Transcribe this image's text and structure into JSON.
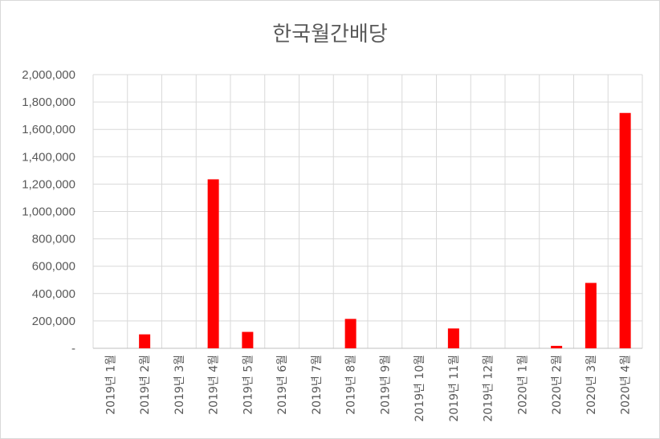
{
  "chart_data": {
    "type": "bar",
    "title": "한국월간배당",
    "categories": [
      "2019년 1월",
      "2019년 2월",
      "2019년 3월",
      "2019년 4월",
      "2019년 5월",
      "2019년 6월",
      "2019년 7월",
      "2019년 8월",
      "2019년 9월",
      "2019년 10월",
      "2019년 11월",
      "2019년 12월",
      "2020년 1월",
      "2020년 2월",
      "2020년 3월",
      "2020년 4월"
    ],
    "values": [
      0,
      102000,
      0,
      1235000,
      120000,
      0,
      0,
      215000,
      0,
      0,
      145000,
      0,
      0,
      18000,
      478000,
      1720000
    ],
    "ylim": [
      0,
      2000000
    ],
    "yticks": [
      0,
      200000,
      400000,
      600000,
      800000,
      1000000,
      1200000,
      1400000,
      1600000,
      1800000,
      2000000
    ],
    "ytick_labels": [
      "-",
      "200,000",
      "400,000",
      "600,000",
      "800,000",
      "1,000,000",
      "1,200,000",
      "1,400,000",
      "1,600,000",
      "1,800,000",
      "2,000,000"
    ],
    "bar_color": "#ff0000",
    "grid": true,
    "xlabel": "",
    "ylabel": ""
  }
}
